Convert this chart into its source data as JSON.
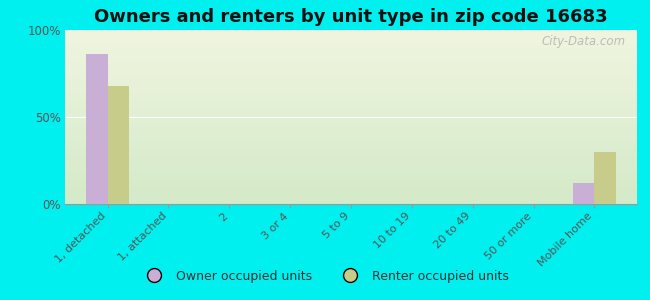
{
  "title": "Owners and renters by unit type in zip code 16683",
  "categories": [
    "1, detached",
    "1, attached",
    "2",
    "3 or 4",
    "5 to 9",
    "10 to 19",
    "20 to 49",
    "50 or more",
    "Mobile home"
  ],
  "owner_values": [
    86,
    0,
    0,
    0,
    0,
    0,
    0,
    0,
    12
  ],
  "renter_values": [
    68,
    0,
    0,
    0,
    0,
    0,
    0,
    0,
    30
  ],
  "owner_color": "#c9aed6",
  "renter_color": "#c8cc8a",
  "background_color": "#00efef",
  "plot_bg_top": "#d4eac8",
  "plot_bg_bottom": "#f0f5e0",
  "ylim": [
    0,
    100
  ],
  "yticks": [
    0,
    50,
    100
  ],
  "ytick_labels": [
    "0%",
    "50%",
    "100%"
  ],
  "bar_width": 0.35,
  "title_fontsize": 13,
  "watermark": "City-Data.com",
  "legend_owner": "Owner occupied units",
  "legend_renter": "Renter occupied units"
}
